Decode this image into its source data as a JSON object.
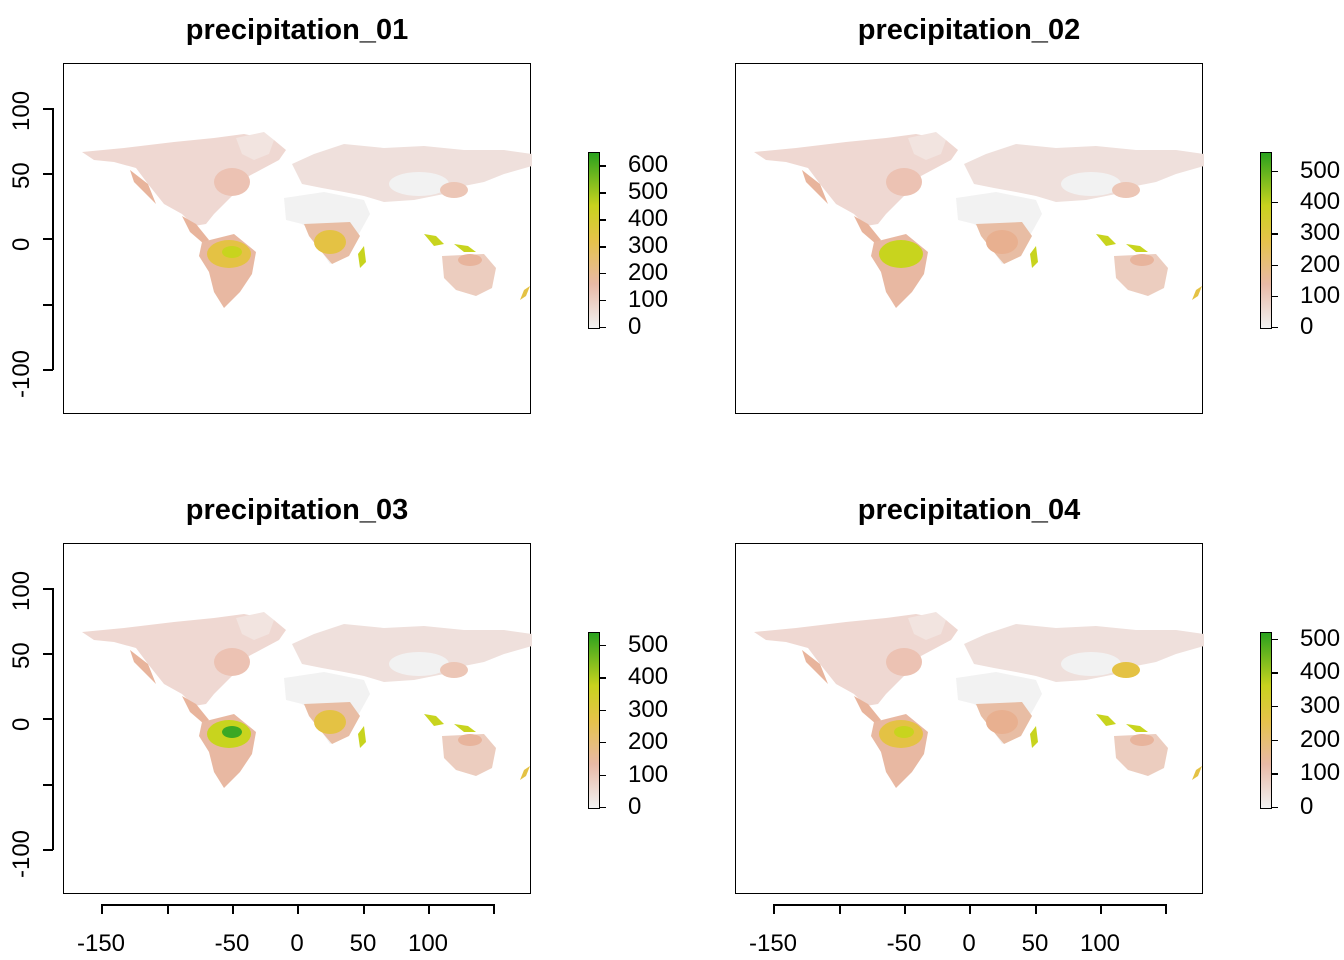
{
  "panels": [
    {
      "title": "precipitation_01",
      "legend_labels": [
        "600",
        "500",
        "400",
        "300",
        "200",
        "100",
        "0"
      ],
      "legend_max": 650
    },
    {
      "title": "precipitation_02",
      "legend_labels": [
        "500",
        "400",
        "300",
        "200",
        "100",
        "0"
      ],
      "legend_max": 560
    },
    {
      "title": "precipitation_03",
      "legend_labels": [
        "500",
        "400",
        "300",
        "200",
        "100",
        "0"
      ],
      "legend_max": 540
    },
    {
      "title": "precipitation_04",
      "legend_labels": [
        "500",
        "400",
        "300",
        "200",
        "100",
        "0"
      ],
      "legend_max": 520
    }
  ],
  "y_axis_labels": [
    "100",
    "50",
    "0",
    "-100"
  ],
  "x_axis_labels": [
    "-150",
    "-50",
    "0",
    "50",
    "100"
  ],
  "colors": {
    "low": "#f2f2f2",
    "mid_low": "#e8b9a6",
    "mid": "#e6c34a",
    "high": "#2aa11e"
  }
}
